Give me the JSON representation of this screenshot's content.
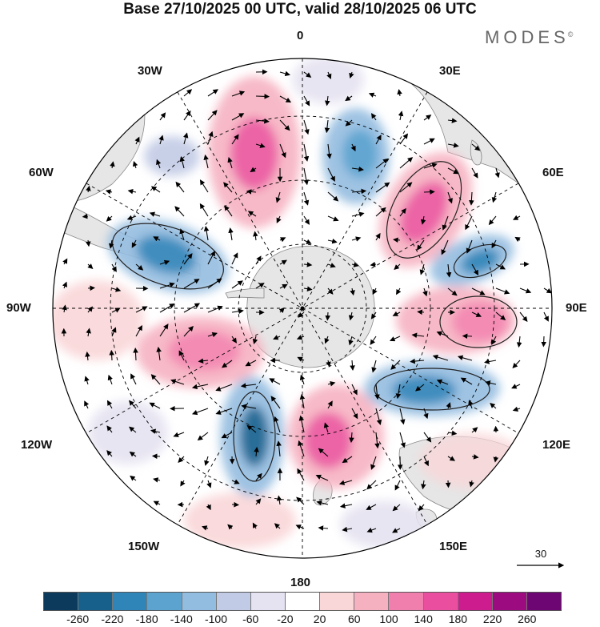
{
  "header": {
    "title": "Base 27/10/2025 00 UTC, valid 28/10/2025 06 UTC",
    "brand": "MODES",
    "brand_mark": "©"
  },
  "map": {
    "projection": "South polar stereographic",
    "longitude_labels": {
      "top": "0",
      "bottom": "180",
      "left": "90W",
      "right": "90E",
      "w30": "30W",
      "e30": "30E",
      "w60": "60W",
      "e60": "60E",
      "w120": "120W",
      "e120": "120E",
      "w150": "150W",
      "e150": "150E"
    }
  },
  "vector_reference": {
    "value": "30"
  },
  "colorbar": {
    "colors": [
      "#0c3a5c",
      "#17608c",
      "#2f85b8",
      "#5ca3cf",
      "#93bde0",
      "#c2cbe6",
      "#e5e2f1",
      "#ffffff",
      "#f9d6d8",
      "#f6b1c1",
      "#f17fae",
      "#e94f9e",
      "#cc1c8d",
      "#9d0b80",
      "#6d0673"
    ],
    "tick_labels": [
      "-260",
      "-220",
      "-180",
      "-140",
      "-100",
      "-60",
      "-20",
      "20",
      "60",
      "100",
      "140",
      "180",
      "220",
      "260"
    ]
  }
}
